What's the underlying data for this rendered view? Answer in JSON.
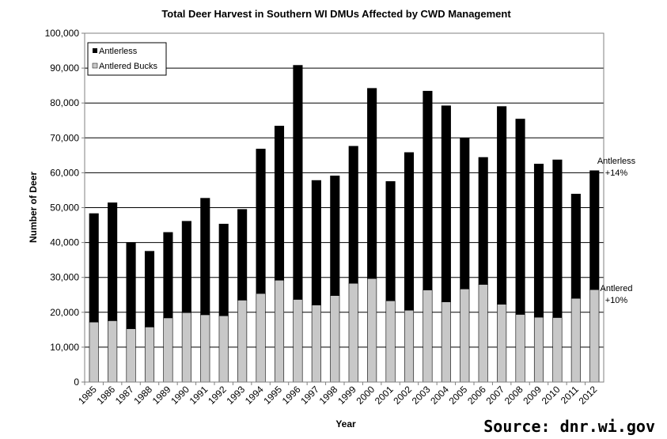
{
  "chart_data": {
    "type": "bar",
    "stacked": true,
    "title": "Total Deer Harvest in Southern WI DMUs Affected by CWD Management",
    "xlabel": "Year",
    "ylabel": "Number of Deer",
    "ylim": [
      0,
      100000
    ],
    "yticks": [
      "0",
      "10,000",
      "20,000",
      "30,000",
      "40,000",
      "50,000",
      "60,000",
      "70,000",
      "80,000",
      "90,000",
      "100,000"
    ],
    "grid": true,
    "legend_position": "top-left",
    "categories": [
      "1985",
      "1986",
      "1987",
      "1988",
      "1989",
      "1990",
      "1991",
      "1992",
      "1993",
      "1994",
      "1995",
      "1996",
      "1997",
      "1998",
      "1999",
      "2000",
      "2001",
      "2002",
      "2003",
      "2004",
      "2005",
      "2006",
      "2007",
      "2008",
      "2009",
      "2010",
      "2011",
      "2012"
    ],
    "series": [
      {
        "name": "Antlered Bucks",
        "color": "#c8c8c8",
        "values": [
          17200,
          17600,
          15300,
          15800,
          18400,
          19900,
          19300,
          19000,
          23500,
          25400,
          29200,
          23700,
          22100,
          24800,
          28300,
          29700,
          23300,
          20600,
          26400,
          23000,
          26700,
          28000,
          22300,
          19400,
          18600,
          18500,
          24000,
          26500
        ]
      },
      {
        "name": "Antlerless",
        "color": "#000000",
        "values": [
          31100,
          33800,
          24700,
          21700,
          24500,
          26200,
          33400,
          26300,
          26000,
          41400,
          44200,
          67100,
          35700,
          34300,
          39300,
          54500,
          34200,
          45200,
          57000,
          56200,
          43300,
          36400,
          56700,
          56000,
          43900,
          45200,
          29900,
          34100
        ]
      }
    ],
    "annotations": [
      {
        "lines": [
          "Antlerless",
          "+14%"
        ]
      },
      {
        "lines": [
          "Antlered",
          "+10%"
        ]
      }
    ]
  },
  "source": "Source: dnr.wi.gov"
}
